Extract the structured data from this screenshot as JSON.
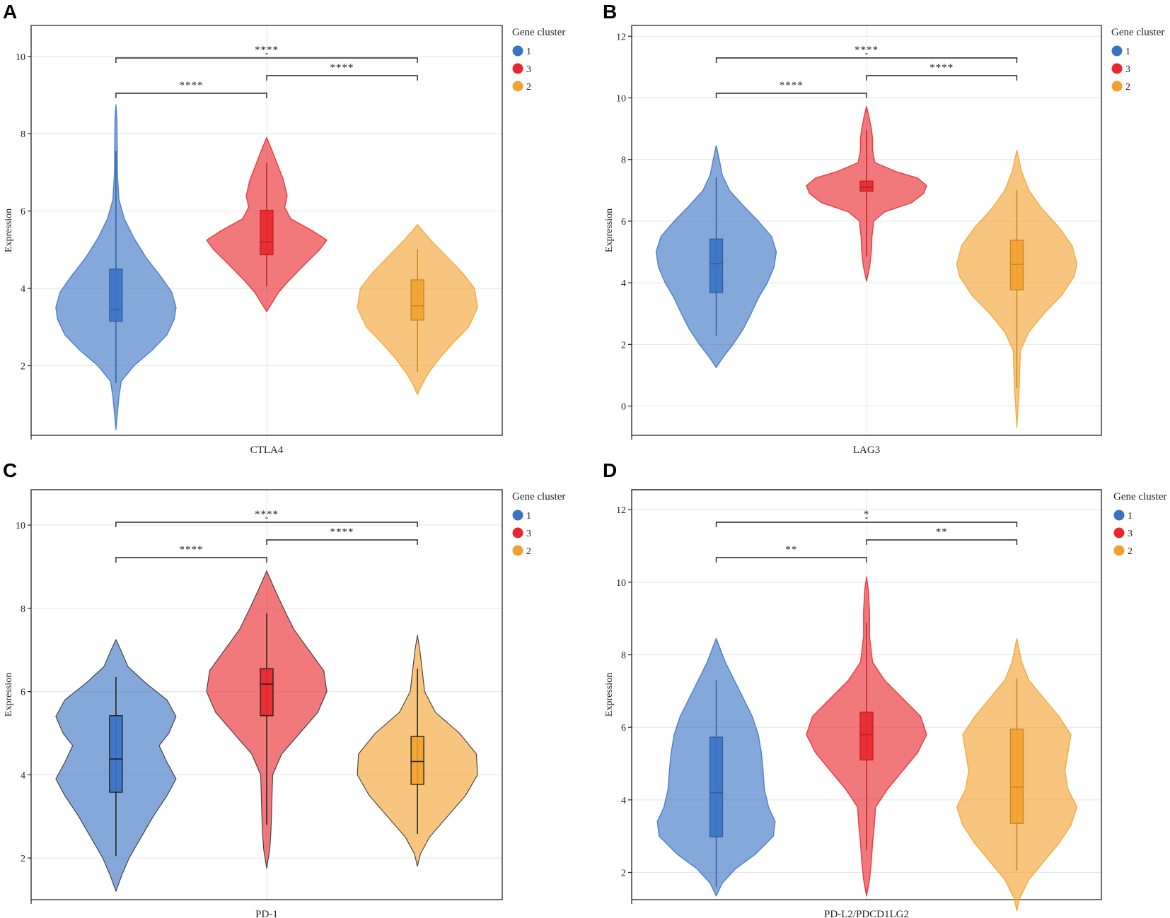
{
  "colors": {
    "1": "#3a72c4",
    "3": "#e8262c",
    "2": "#f2a12e"
  },
  "legend": {
    "title": "Gene cluster",
    "items": [
      {
        "key": "1",
        "label": "1"
      },
      {
        "key": "3",
        "label": "3"
      },
      {
        "key": "2",
        "label": "2"
      }
    ]
  },
  "chart_data": [
    {
      "panel": "A",
      "type": "violin",
      "xlabel": "CTLA4",
      "ylabel": "Expression",
      "ylim": [
        0.2,
        10.8
      ],
      "yticks": [
        2,
        4,
        6,
        8,
        10
      ],
      "outline": false,
      "groups": [
        {
          "cluster": "1",
          "min": 0.35,
          "max": 8.75,
          "median": 3.45,
          "q1": 3.15,
          "q3": 4.5,
          "whisker_low": 1.55,
          "whisker_high": 7.55,
          "density": [
            [
              0.35,
              0.0
            ],
            [
              0.7,
              0.02
            ],
            [
              1.2,
              0.05
            ],
            [
              1.6,
              0.09
            ],
            [
              2.0,
              0.3
            ],
            [
              2.4,
              0.6
            ],
            [
              2.8,
              0.85
            ],
            [
              3.2,
              0.97
            ],
            [
              3.5,
              1.0
            ],
            [
              3.9,
              0.93
            ],
            [
              4.3,
              0.75
            ],
            [
              4.8,
              0.5
            ],
            [
              5.3,
              0.3
            ],
            [
              5.8,
              0.14
            ],
            [
              6.3,
              0.05
            ],
            [
              7.0,
              0.025
            ],
            [
              7.8,
              0.02
            ],
            [
              8.4,
              0.015
            ],
            [
              8.75,
              0.0
            ]
          ]
        },
        {
          "cluster": "3",
          "min": 3.4,
          "max": 7.9,
          "median": 5.2,
          "q1": 4.87,
          "q3": 6.02,
          "whisker_low": 4.05,
          "whisker_high": 7.25,
          "density": [
            [
              3.4,
              0.0
            ],
            [
              3.6,
              0.08
            ],
            [
              3.9,
              0.2
            ],
            [
              4.2,
              0.37
            ],
            [
              4.6,
              0.62
            ],
            [
              5.0,
              0.88
            ],
            [
              5.25,
              1.0
            ],
            [
              5.5,
              0.75
            ],
            [
              5.8,
              0.4
            ],
            [
              6.1,
              0.3
            ],
            [
              6.4,
              0.34
            ],
            [
              6.8,
              0.28
            ],
            [
              7.2,
              0.18
            ],
            [
              7.6,
              0.08
            ],
            [
              7.9,
              0.0
            ]
          ]
        },
        {
          "cluster": "2",
          "min": 1.25,
          "max": 5.65,
          "median": 3.55,
          "q1": 3.18,
          "q3": 4.22,
          "whisker_low": 1.85,
          "whisker_high": 5.02,
          "density": [
            [
              1.25,
              0.0
            ],
            [
              1.5,
              0.07
            ],
            [
              1.8,
              0.18
            ],
            [
              2.2,
              0.37
            ],
            [
              2.6,
              0.6
            ],
            [
              3.0,
              0.85
            ],
            [
              3.5,
              1.0
            ],
            [
              4.0,
              0.95
            ],
            [
              4.4,
              0.75
            ],
            [
              4.8,
              0.5
            ],
            [
              5.2,
              0.25
            ],
            [
              5.5,
              0.08
            ],
            [
              5.65,
              0.0
            ]
          ]
        }
      ],
      "comparisons": [
        {
          "groups": [
            "1",
            "3"
          ],
          "label": "****"
        },
        {
          "groups": [
            "3",
            "2"
          ],
          "label": "****"
        },
        {
          "groups": [
            "1",
            "2"
          ],
          "label": "****"
        }
      ],
      "top_marks": [
        "-"
      ]
    },
    {
      "panel": "B",
      "type": "violin",
      "xlabel": "LAG3",
      "ylabel": "Expression",
      "ylim": [
        -0.95,
        12.35
      ],
      "yticks": [
        0,
        2,
        4,
        6,
        8,
        10,
        12
      ],
      "outline": false,
      "groups": [
        {
          "cluster": "1",
          "min": 1.25,
          "max": 8.45,
          "median": 4.62,
          "q1": 3.68,
          "q3": 5.42,
          "whisker_low": 2.28,
          "whisker_high": 7.42,
          "density": [
            [
              1.25,
              0.0
            ],
            [
              1.6,
              0.12
            ],
            [
              2.0,
              0.28
            ],
            [
              2.5,
              0.45
            ],
            [
              3.0,
              0.58
            ],
            [
              3.5,
              0.7
            ],
            [
              4.0,
              0.85
            ],
            [
              4.5,
              0.96
            ],
            [
              5.0,
              1.0
            ],
            [
              5.5,
              0.92
            ],
            [
              6.0,
              0.7
            ],
            [
              6.5,
              0.45
            ],
            [
              7.0,
              0.22
            ],
            [
              7.5,
              0.1
            ],
            [
              8.0,
              0.05
            ],
            [
              8.45,
              0.0
            ]
          ]
        },
        {
          "cluster": "3",
          "min": 4.05,
          "max": 9.72,
          "median": 7.1,
          "q1": 6.97,
          "q3": 7.3,
          "whisker_low": 4.85,
          "whisker_high": 8.95,
          "density": [
            [
              4.05,
              0.0
            ],
            [
              4.5,
              0.05
            ],
            [
              5.0,
              0.08
            ],
            [
              5.5,
              0.09
            ],
            [
              6.0,
              0.12
            ],
            [
              6.3,
              0.3
            ],
            [
              6.6,
              0.75
            ],
            [
              6.9,
              0.95
            ],
            [
              7.15,
              1.0
            ],
            [
              7.4,
              0.85
            ],
            [
              7.6,
              0.5
            ],
            [
              7.9,
              0.14
            ],
            [
              8.3,
              0.1
            ],
            [
              8.7,
              0.1
            ],
            [
              9.0,
              0.08
            ],
            [
              9.4,
              0.04
            ],
            [
              9.72,
              0.0
            ]
          ]
        },
        {
          "cluster": "2",
          "min": -0.7,
          "max": 8.3,
          "median": 4.6,
          "q1": 3.77,
          "q3": 5.38,
          "whisker_low": 0.58,
          "whisker_high": 7.0,
          "density": [
            [
              -0.7,
              0.0
            ],
            [
              0.0,
              0.02
            ],
            [
              0.6,
              0.04
            ],
            [
              1.2,
              0.05
            ],
            [
              1.8,
              0.06
            ],
            [
              2.4,
              0.2
            ],
            [
              3.0,
              0.45
            ],
            [
              3.6,
              0.75
            ],
            [
              4.2,
              0.95
            ],
            [
              4.6,
              1.0
            ],
            [
              5.2,
              0.92
            ],
            [
              5.8,
              0.7
            ],
            [
              6.4,
              0.42
            ],
            [
              7.0,
              0.2
            ],
            [
              7.6,
              0.08
            ],
            [
              8.3,
              0.0
            ]
          ]
        }
      ],
      "comparisons": [
        {
          "groups": [
            "1",
            "3"
          ],
          "label": "****"
        },
        {
          "groups": [
            "3",
            "2"
          ],
          "label": "****"
        },
        {
          "groups": [
            "1",
            "2"
          ],
          "label": "****"
        }
      ],
      "top_marks": [
        "-"
      ]
    },
    {
      "panel": "C",
      "type": "violin",
      "xlabel": "PD-1",
      "ylabel": "Expression",
      "ylim": [
        1.0,
        10.85
      ],
      "yticks": [
        2,
        4,
        6,
        8,
        10
      ],
      "outline": true,
      "groups": [
        {
          "cluster": "1",
          "min": 1.2,
          "max": 7.25,
          "median": 4.38,
          "q1": 3.58,
          "q3": 5.42,
          "whisker_low": 2.05,
          "whisker_high": 6.35,
          "density": [
            [
              1.2,
              0.0
            ],
            [
              1.6,
              0.1
            ],
            [
              2.0,
              0.22
            ],
            [
              2.5,
              0.42
            ],
            [
              3.0,
              0.62
            ],
            [
              3.5,
              0.85
            ],
            [
              3.9,
              1.0
            ],
            [
              4.3,
              0.85
            ],
            [
              4.7,
              0.72
            ],
            [
              5.0,
              0.88
            ],
            [
              5.4,
              1.0
            ],
            [
              5.8,
              0.85
            ],
            [
              6.2,
              0.5
            ],
            [
              6.6,
              0.2
            ],
            [
              7.0,
              0.08
            ],
            [
              7.25,
              0.0
            ]
          ]
        },
        {
          "cluster": "3",
          "min": 1.75,
          "max": 8.9,
          "median": 6.18,
          "q1": 5.42,
          "q3": 6.55,
          "whisker_low": 2.8,
          "whisker_high": 7.88,
          "density": [
            [
              1.75,
              0.0
            ],
            [
              2.2,
              0.05
            ],
            [
              2.6,
              0.07
            ],
            [
              3.0,
              0.08
            ],
            [
              3.5,
              0.09
            ],
            [
              4.0,
              0.1
            ],
            [
              4.5,
              0.25
            ],
            [
              5.0,
              0.55
            ],
            [
              5.5,
              0.85
            ],
            [
              6.0,
              1.0
            ],
            [
              6.5,
              0.95
            ],
            [
              7.0,
              0.7
            ],
            [
              7.5,
              0.45
            ],
            [
              8.0,
              0.28
            ],
            [
              8.5,
              0.12
            ],
            [
              8.9,
              0.0
            ]
          ]
        },
        {
          "cluster": "2",
          "min": 1.8,
          "max": 7.35,
          "median": 4.32,
          "q1": 3.77,
          "q3": 4.92,
          "whisker_low": 2.58,
          "whisker_high": 6.55,
          "density": [
            [
              1.8,
              0.0
            ],
            [
              2.1,
              0.05
            ],
            [
              2.5,
              0.2
            ],
            [
              3.0,
              0.5
            ],
            [
              3.5,
              0.8
            ],
            [
              4.0,
              1.0
            ],
            [
              4.5,
              0.98
            ],
            [
              5.0,
              0.7
            ],
            [
              5.5,
              0.3
            ],
            [
              6.0,
              0.12
            ],
            [
              6.5,
              0.08
            ],
            [
              7.0,
              0.04
            ],
            [
              7.35,
              0.0
            ]
          ]
        }
      ],
      "comparisons": [
        {
          "groups": [
            "1",
            "3"
          ],
          "label": "****"
        },
        {
          "groups": [
            "3",
            "2"
          ],
          "label": "****"
        },
        {
          "groups": [
            "1",
            "2"
          ],
          "label": "****"
        }
      ],
      "top_marks": [
        "-"
      ]
    },
    {
      "panel": "D",
      "type": "violin",
      "xlabel": "PD-L2/PDCD1LG2",
      "ylabel": "Expression",
      "ylim": [
        1.25,
        12.55
      ],
      "yticks": [
        2,
        4,
        6,
        8,
        10,
        12
      ],
      "outline": false,
      "groups": [
        {
          "cluster": "1",
          "min": 1.35,
          "max": 8.45,
          "median": 4.2,
          "q1": 2.98,
          "q3": 5.73,
          "whisker_low": 1.6,
          "whisker_high": 7.3,
          "density": [
            [
              1.35,
              0.0
            ],
            [
              1.7,
              0.1
            ],
            [
              2.1,
              0.32
            ],
            [
              2.5,
              0.65
            ],
            [
              3.0,
              0.95
            ],
            [
              3.4,
              0.98
            ],
            [
              3.8,
              0.87
            ],
            [
              4.3,
              0.8
            ],
            [
              4.8,
              0.78
            ],
            [
              5.3,
              0.75
            ],
            [
              5.8,
              0.7
            ],
            [
              6.3,
              0.6
            ],
            [
              6.8,
              0.45
            ],
            [
              7.3,
              0.3
            ],
            [
              7.8,
              0.15
            ],
            [
              8.45,
              0.0
            ]
          ]
        },
        {
          "cluster": "3",
          "min": 1.35,
          "max": 10.15,
          "median": 5.8,
          "q1": 5.1,
          "q3": 6.42,
          "whisker_low": 2.62,
          "whisker_high": 8.88,
          "density": [
            [
              1.35,
              0.0
            ],
            [
              1.8,
              0.05
            ],
            [
              2.3,
              0.08
            ],
            [
              2.8,
              0.1
            ],
            [
              3.3,
              0.13
            ],
            [
              3.8,
              0.15
            ],
            [
              4.3,
              0.35
            ],
            [
              4.8,
              0.6
            ],
            [
              5.3,
              0.85
            ],
            [
              5.8,
              1.0
            ],
            [
              6.3,
              0.9
            ],
            [
              6.8,
              0.6
            ],
            [
              7.3,
              0.3
            ],
            [
              7.8,
              0.1
            ],
            [
              8.5,
              0.05
            ],
            [
              9.2,
              0.05
            ],
            [
              9.8,
              0.03
            ],
            [
              10.15,
              0.0
            ]
          ]
        },
        {
          "cluster": "2",
          "min": 0.95,
          "max": 8.45,
          "median": 4.35,
          "q1": 3.35,
          "q3": 5.95,
          "whisker_low": 2.05,
          "whisker_high": 7.35,
          "density": [
            [
              0.95,
              0.0
            ],
            [
              1.3,
              0.05
            ],
            [
              1.8,
              0.2
            ],
            [
              2.3,
              0.45
            ],
            [
              2.8,
              0.7
            ],
            [
              3.3,
              0.9
            ],
            [
              3.8,
              1.0
            ],
            [
              4.3,
              0.85
            ],
            [
              4.8,
              0.8
            ],
            [
              5.3,
              0.85
            ],
            [
              5.8,
              0.9
            ],
            [
              6.3,
              0.7
            ],
            [
              6.8,
              0.45
            ],
            [
              7.3,
              0.2
            ],
            [
              7.8,
              0.08
            ],
            [
              8.45,
              0.0
            ]
          ]
        }
      ],
      "comparisons": [
        {
          "groups": [
            "1",
            "3"
          ],
          "label": "**"
        },
        {
          "groups": [
            "3",
            "2"
          ],
          "label": "**"
        },
        {
          "groups": [
            "1",
            "2"
          ],
          "label": "*"
        }
      ],
      "top_marks": [
        "-"
      ]
    }
  ]
}
